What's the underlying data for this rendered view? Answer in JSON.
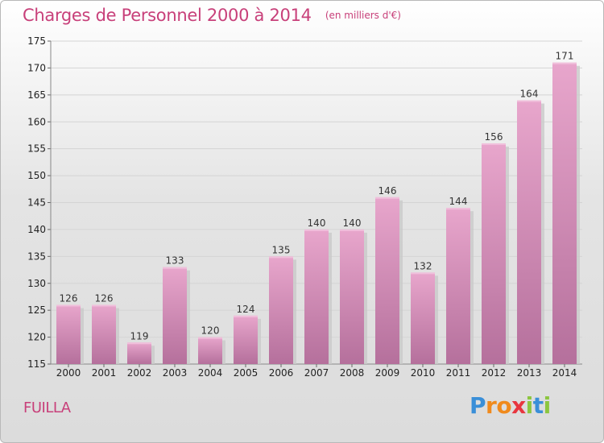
{
  "header": {
    "title": "Charges de Personnel 2000 à 2014",
    "subtitle": "(en milliers d'€)"
  },
  "footer": {
    "commune": "FUILLA",
    "logo_text": "Proxiti"
  },
  "colors": {
    "title": "#c8407a",
    "bar_top": "#e8a6cc",
    "bar_bottom": "#b5709c",
    "bar_shadow": "#c9c9c9"
  },
  "chart_data": {
    "type": "bar",
    "title": "Charges de Personnel 2000 à 2014",
    "subtitle": "(en milliers d'€)",
    "xlabel": "",
    "ylabel": "",
    "categories": [
      "2000",
      "2001",
      "2002",
      "2003",
      "2004",
      "2005",
      "2006",
      "2007",
      "2008",
      "2009",
      "2010",
      "2011",
      "2012",
      "2013",
      "2014"
    ],
    "values": [
      126,
      126,
      119,
      133,
      120,
      124,
      135,
      140,
      140,
      146,
      132,
      144,
      156,
      164,
      171
    ],
    "ylim": [
      115,
      175
    ],
    "yticks": [
      115,
      120,
      125,
      130,
      135,
      140,
      145,
      150,
      155,
      160,
      165,
      170,
      175
    ],
    "grid": true,
    "legend": "none"
  }
}
